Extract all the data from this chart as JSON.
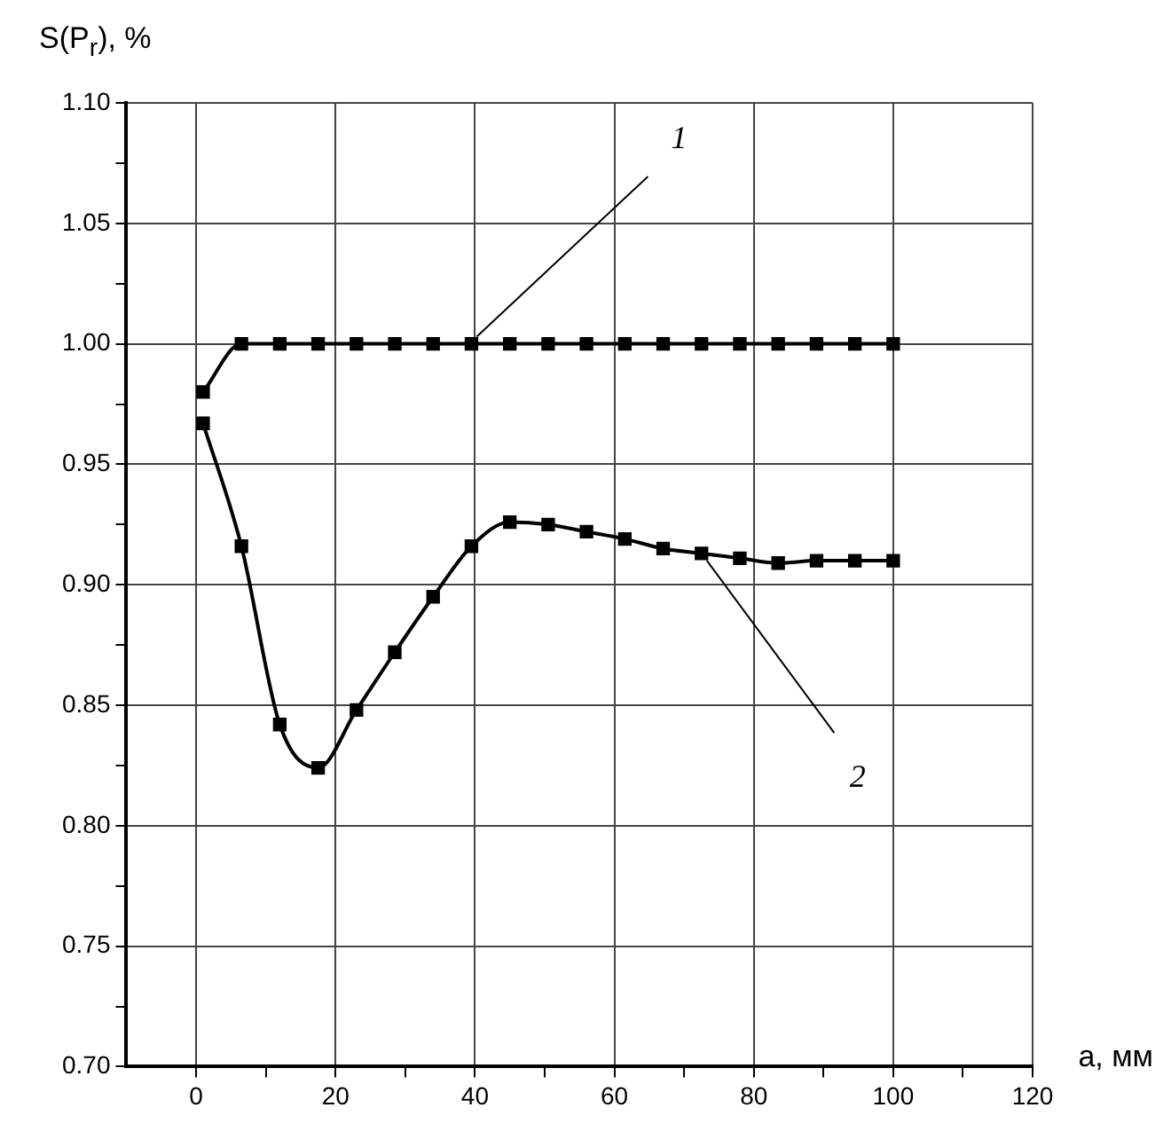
{
  "chart_data": {
    "type": "line",
    "ylabel": "S(P$_{r}$), %",
    "xlabel": "a, мм",
    "xlim": [
      -10,
      120
    ],
    "xticks": [
      0,
      {
        "value": 10,
        "label": null
      },
      20,
      {
        "value": 30,
        "label": null
      },
      40,
      {
        "value": 50,
        "label": null
      },
      60,
      {
        "value": 70,
        "label": null
      },
      80,
      {
        "value": 90,
        "label": null
      },
      100,
      {
        "value": 110,
        "label": null
      },
      120
    ],
    "ylim": [
      0.7,
      1.1
    ],
    "yticks": [
      {
        "value": 0.7,
        "label": "0.70"
      },
      {
        "value": 0.725,
        "label": null
      },
      0.75,
      {
        "value": 0.775,
        "label": null
      },
      {
        "value": 0.8,
        "label": "0.80"
      },
      {
        "value": 0.825,
        "label": null
      },
      0.85,
      {
        "value": 0.875,
        "label": null
      },
      {
        "value": 0.9,
        "label": "0.90"
      },
      {
        "value": 0.925,
        "label": null
      },
      0.95,
      {
        "value": 0.975,
        "label": null
      },
      {
        "value": 1.0,
        "label": "1.00"
      },
      {
        "value": 1.025,
        "label": null
      },
      1.05,
      {
        "value": 1.075,
        "label": null
      },
      {
        "value": 1.1,
        "label": "1.10"
      }
    ],
    "x": [
      1,
      6.5,
      12,
      17.5,
      23,
      28.5,
      34,
      39.5,
      45,
      50.5,
      56,
      61.5,
      67,
      72.5,
      78,
      83.5,
      89,
      94.5,
      100
    ],
    "series": [
      {
        "color": "#000000",
        "values": [
          0.98,
          1.0,
          1.0,
          1.0,
          1.0,
          1.0,
          1.0,
          1.0,
          1.0,
          1.0,
          1.0,
          1.0,
          1.0,
          1.0,
          1.0,
          1.0,
          1.0,
          1.0,
          1.0
        ]
      },
      {
        "color": "#000000",
        "values": [
          0.967,
          0.916,
          0.842,
          0.824,
          0.848,
          0.872,
          0.895,
          0.916,
          0.926,
          0.925,
          0.922,
          0.919,
          0.915,
          0.913,
          0.911,
          0.909,
          0.91,
          0.91,
          0.91
        ]
      }
    ],
    "annotations": [
      {
        "text": "1",
        "x": 39.5,
        "y": 1.0
      },
      {
        "text": "2",
        "x": 72.5,
        "y": 0.913
      }
    ],
    "grid": true,
    "legend": false,
    "marker": "square",
    "line_style": "solid"
  }
}
